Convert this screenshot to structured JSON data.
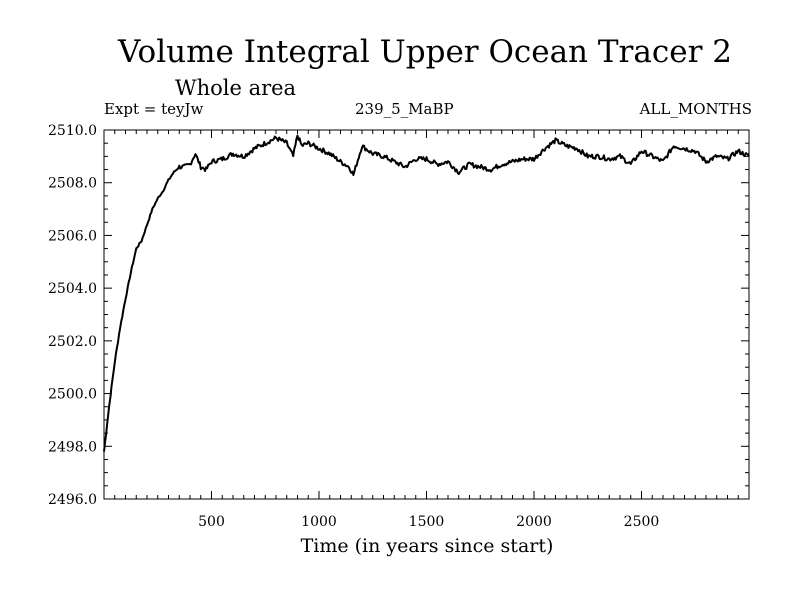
{
  "chart_data": {
    "type": "line",
    "title": "Volume Integral Upper Ocean Tracer 2",
    "subtitle": "Whole area",
    "expt_label": "Expt = teyJw",
    "period_label": "239_5_MaBP",
    "months_label": "ALL_MONTHS",
    "xlabel": "Time (in years since start)",
    "ylabel": "",
    "xlim": [
      0,
      3000
    ],
    "ylim": [
      2496.0,
      2510.0
    ],
    "x_ticks": [
      500,
      1000,
      1500,
      2000,
      2500
    ],
    "y_ticks": [
      "2496.0",
      "2498.0",
      "2500.0",
      "2502.0",
      "2504.0",
      "2506.0",
      "2508.0",
      "2510.0"
    ],
    "grid": false,
    "line_color": "#000000",
    "series": [
      {
        "x": [
          0,
          25,
          50,
          75,
          100,
          125,
          150,
          175,
          200,
          225,
          250,
          275,
          300,
          325,
          350,
          375,
          400,
          425,
          450,
          475,
          500,
          550,
          600,
          650,
          700,
          750,
          800,
          850,
          880,
          900,
          920,
          950,
          1000,
          1050,
          1100,
          1140,
          1160,
          1200,
          1250,
          1300,
          1350,
          1400,
          1450,
          1500,
          1550,
          1600,
          1650,
          1700,
          1750,
          1800,
          1850,
          1900,
          1950,
          2000,
          2050,
          2100,
          2150,
          2200,
          2250,
          2300,
          2350,
          2400,
          2450,
          2500,
          2550,
          2600,
          2650,
          2700,
          2750,
          2800,
          2850,
          2900,
          2950,
          3000
        ],
        "values": [
          2497.8,
          2499.6,
          2501.2,
          2502.5,
          2503.6,
          2504.6,
          2505.5,
          2505.8,
          2506.4,
          2507.0,
          2507.4,
          2507.7,
          2508.1,
          2508.4,
          2508.6,
          2508.6,
          2508.7,
          2509.1,
          2508.6,
          2508.5,
          2508.8,
          2508.9,
          2509.1,
          2509.0,
          2509.3,
          2509.5,
          2509.7,
          2509.5,
          2509.0,
          2509.8,
          2509.4,
          2509.5,
          2509.3,
          2509.1,
          2508.8,
          2508.6,
          2508.3,
          2509.4,
          2509.1,
          2509.0,
          2508.8,
          2508.6,
          2508.9,
          2508.9,
          2508.7,
          2508.8,
          2508.4,
          2508.7,
          2508.6,
          2508.5,
          2508.7,
          2508.8,
          2508.9,
          2508.9,
          2509.3,
          2509.6,
          2509.4,
          2509.3,
          2509.0,
          2509.0,
          2508.9,
          2509.0,
          2508.7,
          2509.2,
          2509.0,
          2508.8,
          2509.4,
          2509.3,
          2509.2,
          2508.8,
          2509.0,
          2508.9,
          2509.2,
          2509.0
        ]
      }
    ]
  }
}
